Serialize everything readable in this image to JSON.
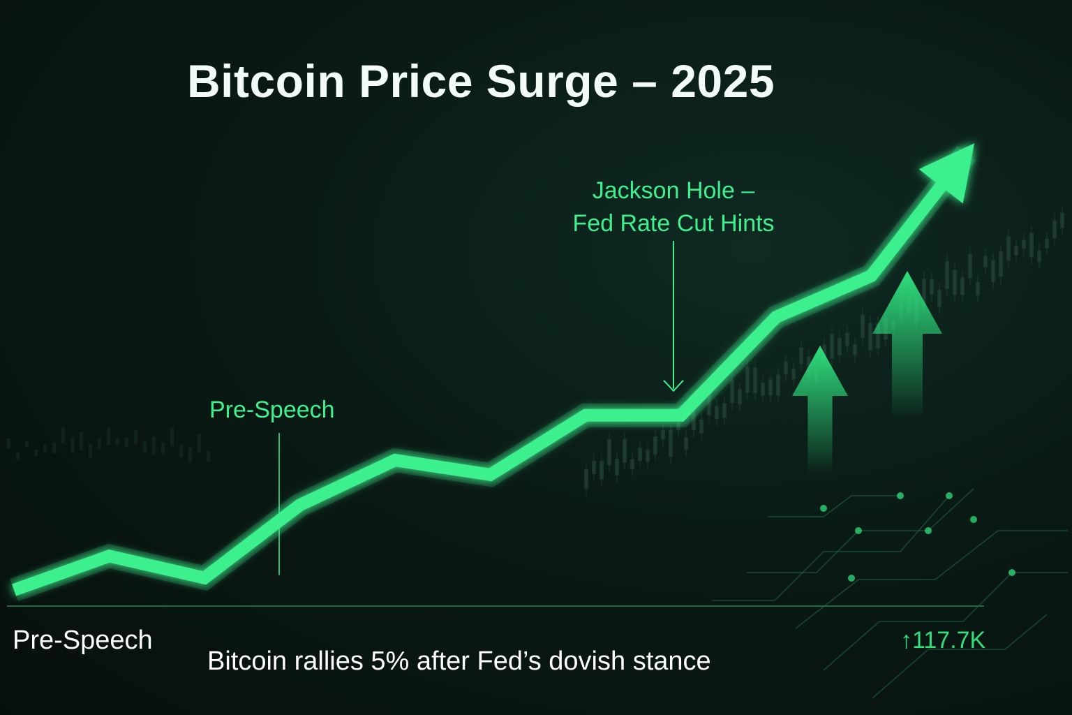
{
  "title": "Bitcoin Price Surge – 2025",
  "colors": {
    "line": "#3ef08e",
    "annotation": "#3ef08e",
    "background": "#08120f",
    "text": "#ffffff"
  },
  "chart_data": {
    "type": "line",
    "title": "Bitcoin Price Surge – 2025",
    "xlabel": "",
    "ylabel": "",
    "x_start_label": "Pre-Speech",
    "end_value_label": "117.7K",
    "series": [
      {
        "values": [
          0,
          2.8,
          1.0,
          7.0,
          10.7,
          9.5,
          14.4,
          14.4,
          22.5,
          25.9,
          36.0
        ]
      }
    ],
    "ylim": [
      0,
      40
    ],
    "grid": false,
    "annotations": [
      {
        "text_lines": [
          "Jackson Hole –",
          "Fed Rate Cut Hints"
        ],
        "point_index": 7
      },
      {
        "text": "Pre-Speech",
        "point_index": 2
      }
    ],
    "caption": "Bitcoin rallies 5% after Fed’s dovish stance"
  }
}
